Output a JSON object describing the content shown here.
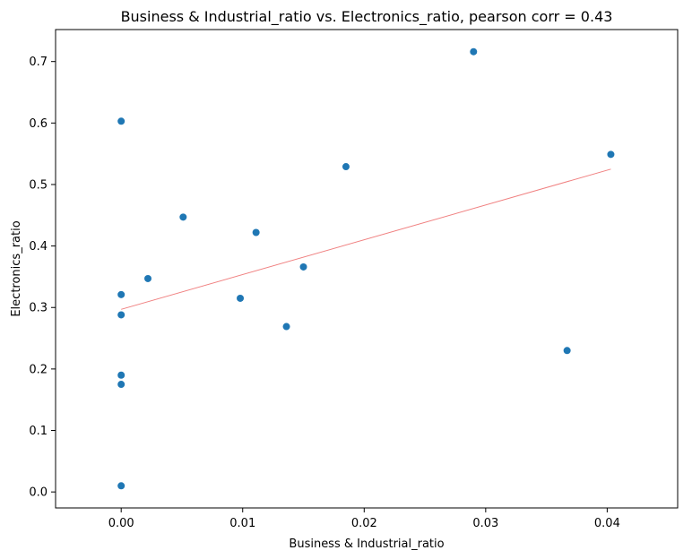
{
  "chart_data": {
    "type": "scatter",
    "title": "Business & Industrial_ratio vs. Electronics_ratio, pearson corr = 0.43",
    "xlabel": "Business & Industrial_ratio",
    "ylabel": "Electronics_ratio",
    "xlim": [
      -0.0054,
      0.0458
    ],
    "ylim": [
      -0.026,
      0.752
    ],
    "xticks": [
      0.0,
      0.01,
      0.02,
      0.03,
      0.04
    ],
    "xtick_labels": [
      "0.00",
      "0.01",
      "0.02",
      "0.03",
      "0.04"
    ],
    "yticks": [
      0.0,
      0.1,
      0.2,
      0.3,
      0.4,
      0.5,
      0.6,
      0.7
    ],
    "ytick_labels": [
      "0.0",
      "0.1",
      "0.2",
      "0.3",
      "0.4",
      "0.5",
      "0.6",
      "0.7"
    ],
    "grid": false,
    "marker_color": "#1f77b4",
    "fit_line_color": "#f08080",
    "points": [
      {
        "x": 0.0,
        "y": 0.603
      },
      {
        "x": 0.0,
        "y": 0.321
      },
      {
        "x": 0.0,
        "y": 0.288
      },
      {
        "x": 0.0,
        "y": 0.19
      },
      {
        "x": 0.0,
        "y": 0.175
      },
      {
        "x": 0.0,
        "y": 0.01
      },
      {
        "x": 0.0022,
        "y": 0.347
      },
      {
        "x": 0.0051,
        "y": 0.447
      },
      {
        "x": 0.0098,
        "y": 0.315
      },
      {
        "x": 0.0111,
        "y": 0.422
      },
      {
        "x": 0.0136,
        "y": 0.269
      },
      {
        "x": 0.015,
        "y": 0.366
      },
      {
        "x": 0.0185,
        "y": 0.529
      },
      {
        "x": 0.029,
        "y": 0.716
      },
      {
        "x": 0.0367,
        "y": 0.23
      },
      {
        "x": 0.0403,
        "y": 0.549
      }
    ],
    "fit_line": [
      {
        "x": 0.0,
        "y": 0.297
      },
      {
        "x": 0.0403,
        "y": 0.525
      }
    ]
  }
}
